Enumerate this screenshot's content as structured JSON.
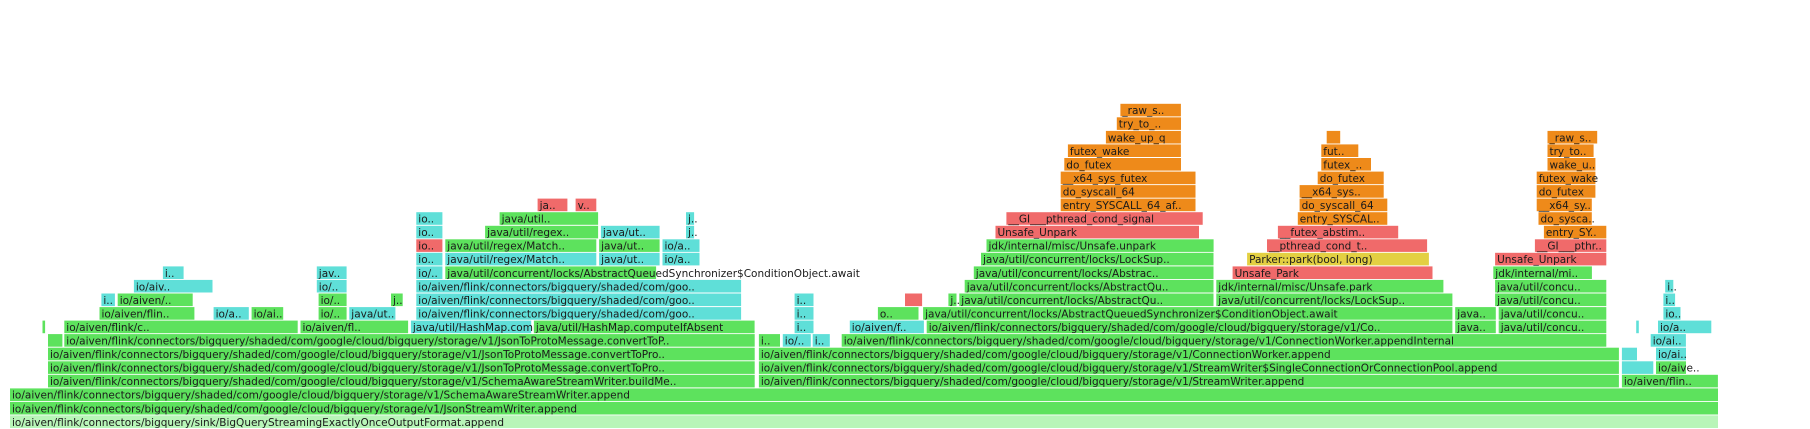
{
  "chart_data": {
    "type": "flame",
    "x_range": [
      0,
      1
    ],
    "frames": [
      {
        "d": 0,
        "x0": 0.0055,
        "x1": 0.9497,
        "c": "#b8f5b8",
        "label": "io/aiven/flink/connectors/bigquery/sink/BigQueryStreamingExactlyOnceOutputFormat.append"
      },
      {
        "d": 1,
        "x0": 0.0055,
        "x1": 0.9497,
        "c": "#5de25d",
        "label": "io/aiven/flink/connectors/bigquery/shaded/com/google/cloud/bigquery/storage/v1/JsonStreamWriter.append"
      },
      {
        "d": 2,
        "x0": 0.0055,
        "x1": 0.9497,
        "c": "#5de25d",
        "label": "io/aiven/flink/connectors/bigquery/shaded/com/google/cloud/bigquery/storage/v1/SchemaAwareStreamWriter.append"
      },
      {
        "d": 3,
        "x0": 0.0265,
        "x1": 0.4175,
        "c": "#5de25d",
        "label": "io/aiven/flink/connectors/bigquery/shaded/com/google/cloud/bigquery/storage/v1/SchemaAwareStreamWriter.buildMe.."
      },
      {
        "d": 3,
        "x0": 0.4193,
        "x1": 0.895,
        "c": "#5de25d",
        "label": "io/aiven/flink/connectors/bigquery/shaded/com/google/cloud/bigquery/storage/v1/StreamWriter.append"
      },
      {
        "d": 3,
        "x0": 0.8961,
        "x1": 0.9497,
        "c": "#5de25d",
        "label": "io/aiven/flin.."
      },
      {
        "d": 4,
        "x0": 0.0265,
        "x1": 0.4175,
        "c": "#5de25d",
        "label": "io/aiven/flink/connectors/bigquery/shaded/com/google/cloud/bigquery/storage/v1/JsonToProtoMessage.convertToPro.."
      },
      {
        "d": 4,
        "x0": 0.4193,
        "x1": 0.895,
        "c": "#5de25d",
        "label": "io/aiven/flink/connectors/bigquery/shaded/com/google/cloud/bigquery/storage/v1/StreamWriter$SingleConnectionOrConnectionPool.append"
      },
      {
        "d": 4,
        "x0": 0.8961,
        "x1": 0.914,
        "c": "#5fdfd8",
        "label": ""
      },
      {
        "d": 4,
        "x0": 0.9149,
        "x1": 0.932,
        "c": "#5de25d",
        "label": "io/aive.."
      },
      {
        "d": 5,
        "x0": 0.0265,
        "x1": 0.4175,
        "c": "#5de25d",
        "label": "io/aiven/flink/connectors/bigquery/shaded/com/google/cloud/bigquery/storage/v1/JsonToProtoMessage.convertToPro.."
      },
      {
        "d": 5,
        "x0": 0.4193,
        "x1": 0.895,
        "c": "#5de25d",
        "label": "io/aiven/flink/connectors/bigquery/shaded/com/google/cloud/bigquery/storage/v1/ConnectionWorker.append"
      },
      {
        "d": 5,
        "x0": 0.8961,
        "x1": 0.905,
        "c": "#5fdfd8",
        "label": ""
      },
      {
        "d": 5,
        "x0": 0.9149,
        "x1": 0.932,
        "c": "#5fdfd8",
        "label": "io/ai.."
      },
      {
        "d": 6,
        "x0": 0.0265,
        "x1": 0.035,
        "c": "#5de25d",
        "label": ""
      },
      {
        "d": 6,
        "x0": 0.0355,
        "x1": 0.4175,
        "c": "#5de25d",
        "label": "io/aiven/flink/connectors/bigquery/shaded/com/google/cloud/bigquery/storage/v1/JsonToProtoMessage.convertToP.."
      },
      {
        "d": 6,
        "x0": 0.4193,
        "x1": 0.4315,
        "c": "#5de25d",
        "label": "i.."
      },
      {
        "d": 6,
        "x0": 0.4325,
        "x1": 0.4485,
        "c": "#5fdfd8",
        "label": "io/.."
      },
      {
        "d": 6,
        "x0": 0.449,
        "x1": 0.459,
        "c": "#5fdfd8",
        "label": "i.."
      },
      {
        "d": 6,
        "x0": 0.465,
        "x1": 0.888,
        "c": "#5de25d",
        "label": "io/aiven/flink/connectors/bigquery/shaded/com/google/cloud/bigquery/storage/v1/ConnectionWorker.appendInternal"
      },
      {
        "d": 6,
        "x0": 0.912,
        "x1": 0.932,
        "c": "#5fdfd8",
        "label": "io/ai.."
      },
      {
        "d": 7,
        "x0": 0.0235,
        "x1": 0.0255,
        "c": "#5de25d",
        "label": ""
      },
      {
        "d": 7,
        "x0": 0.0355,
        "x1": 0.165,
        "c": "#5de25d",
        "label": "io/aiven/flink/c.."
      },
      {
        "d": 7,
        "x0": 0.166,
        "x1": 0.226,
        "c": "#5de25d",
        "label": "io/aiven/fl.."
      },
      {
        "d": 7,
        "x0": 0.227,
        "x1": 0.294,
        "c": "#5fdfd8",
        "label": "java/util/HashMap.computeIfAbsent"
      },
      {
        "d": 7,
        "x0": 0.295,
        "x1": 0.4175,
        "c": "#5de25d",
        "label": "java/util/HashMap.computeIfAbsent"
      },
      {
        "d": 7,
        "x0": 0.439,
        "x1": 0.45,
        "c": "#5fdfd8",
        "label": "i.."
      },
      {
        "d": 7,
        "x0": 0.4695,
        "x1": 0.511,
        "c": "#5fdfd8",
        "label": "io/aiven/f.."
      },
      {
        "d": 7,
        "x0": 0.512,
        "x1": 0.803,
        "c": "#5de25d",
        "label": "io/aiven/flink/connectors/bigquery/shaded/com/google/cloud/bigquery/storage/v1/Co.."
      },
      {
        "d": 7,
        "x0": 0.804,
        "x1": 0.827,
        "c": "#5de25d",
        "label": "java.."
      },
      {
        "d": 7,
        "x0": 0.828,
        "x1": 0.888,
        "c": "#5de25d",
        "label": "java/util/concu.."
      },
      {
        "d": 7,
        "x0": 0.904,
        "x1": 0.906,
        "c": "#5fdfd8",
        "label": ""
      },
      {
        "d": 7,
        "x0": 0.916,
        "x1": 0.946,
        "c": "#5fdfd8",
        "label": "io/a.."
      },
      {
        "d": 8,
        "x0": 0.055,
        "x1": 0.108,
        "c": "#5de25d",
        "label": "io/aiven/flin.."
      },
      {
        "d": 8,
        "x0": 0.118,
        "x1": 0.138,
        "c": "#5fdfd8",
        "label": "io/a.."
      },
      {
        "d": 8,
        "x0": 0.139,
        "x1": 0.157,
        "c": "#5de25d",
        "label": "io/ai.."
      },
      {
        "d": 8,
        "x0": 0.176,
        "x1": 0.192,
        "c": "#5de25d",
        "label": "io/.."
      },
      {
        "d": 8,
        "x0": 0.193,
        "x1": 0.219,
        "c": "#5fdfd8",
        "label": "java/ut.."
      },
      {
        "d": 8,
        "x0": 0.23,
        "x1": 0.41,
        "c": "#5fdfd8",
        "label": "io/aiven/flink/connectors/bigquery/shaded/com/goo.."
      },
      {
        "d": 8,
        "x0": 0.439,
        "x1": 0.45,
        "c": "#5fdfd8",
        "label": "i.."
      },
      {
        "d": 8,
        "x0": 0.485,
        "x1": 0.508,
        "c": "#5de25d",
        "label": "o.."
      },
      {
        "d": 8,
        "x0": 0.51,
        "x1": 0.803,
        "c": "#5de25d",
        "label": "java/util/concurrent/locks/AbstractQueuedSynchronizer$ConditionObject.await"
      },
      {
        "d": 8,
        "x0": 0.804,
        "x1": 0.827,
        "c": "#5de25d",
        "label": "java.."
      },
      {
        "d": 8,
        "x0": 0.828,
        "x1": 0.888,
        "c": "#5de25d",
        "label": "java/util/concu.."
      },
      {
        "d": 8,
        "x0": 0.919,
        "x1": 0.929,
        "c": "#5fdfd8",
        "label": "io.."
      },
      {
        "d": 9,
        "x0": 0.056,
        "x1": 0.064,
        "c": "#5fdfd8",
        "label": "i.."
      },
      {
        "d": 9,
        "x0": 0.065,
        "x1": 0.107,
        "c": "#5de25d",
        "label": "io/aiven/.."
      },
      {
        "d": 9,
        "x0": 0.176,
        "x1": 0.192,
        "c": "#5de25d",
        "label": "io/.."
      },
      {
        "d": 9,
        "x0": 0.216,
        "x1": 0.223,
        "c": "#5de25d",
        "label": "j.."
      },
      {
        "d": 9,
        "x0": 0.23,
        "x1": 0.41,
        "c": "#5fdfd8",
        "label": "io/aiven/flink/connectors/bigquery/shaded/com/goo.."
      },
      {
        "d": 9,
        "x0": 0.439,
        "x1": 0.45,
        "c": "#5fdfd8",
        "label": "i.."
      },
      {
        "d": 9,
        "x0": 0.5,
        "x1": 0.51,
        "c": "#f06a6a",
        "label": ""
      },
      {
        "d": 9,
        "x0": 0.524,
        "x1": 0.529,
        "c": "#5de25d",
        "label": "j.."
      },
      {
        "d": 9,
        "x0": 0.53,
        "x1": 0.671,
        "c": "#5de25d",
        "label": "java/util/concurrent/locks/AbstractQu.."
      },
      {
        "d": 9,
        "x0": 0.672,
        "x1": 0.803,
        "c": "#5de25d",
        "label": "java/util/concurrent/locks/LockSup.."
      },
      {
        "d": 9,
        "x0": 0.826,
        "x1": 0.888,
        "c": "#5de25d",
        "label": "java/util/concu.."
      },
      {
        "d": 9,
        "x0": 0.919,
        "x1": 0.926,
        "c": "#5fdfd8",
        "label": "i.."
      },
      {
        "d": 10,
        "x0": 0.074,
        "x1": 0.118,
        "c": "#5fdfd8",
        "label": "io/aiv.."
      },
      {
        "d": 10,
        "x0": 0.175,
        "x1": 0.192,
        "c": "#5fdfd8",
        "label": "io/.."
      },
      {
        "d": 10,
        "x0": 0.23,
        "x1": 0.41,
        "c": "#5fdfd8",
        "label": "io/aiven/flink/connectors/bigquery/shaded/com/goo.."
      },
      {
        "d": 10,
        "x0": 0.533,
        "x1": 0.671,
        "c": "#5de25d",
        "label": "java/util/concurrent/locks/AbstractQu.."
      },
      {
        "d": 10,
        "x0": 0.672,
        "x1": 0.798,
        "c": "#5de25d",
        "label": "jdk/internal/misc/Unsafe.park"
      },
      {
        "d": 10,
        "x0": 0.826,
        "x1": 0.888,
        "c": "#5de25d",
        "label": "java/util/concu.."
      },
      {
        "d": 10,
        "x0": 0.92,
        "x1": 0.925,
        "c": "#5fdfd8",
        "label": "i.."
      },
      {
        "d": 11,
        "x0": 0.09,
        "x1": 0.102,
        "c": "#5fdfd8",
        "label": "i.."
      },
      {
        "d": 11,
        "x0": 0.175,
        "x1": 0.192,
        "c": "#5fdfd8",
        "label": "jav.."
      },
      {
        "d": 11,
        "x0": 0.23,
        "x1": 0.245,
        "c": "#5fdfd8",
        "label": "io/.."
      },
      {
        "d": 11,
        "x0": 0.246,
        "x1": 0.363,
        "c": "#5de25d",
        "label": "java/util/concurrent/locks/AbstractQueuedSynchronizer$ConditionObject.await"
      },
      {
        "d": 11,
        "x0": 0.538,
        "x1": 0.671,
        "c": "#5de25d",
        "label": "java/util/concurrent/locks/Abstrac.."
      },
      {
        "d": 11,
        "x0": 0.681,
        "x1": 0.792,
        "c": "#f06a6a",
        "label": "Unsafe_Park"
      },
      {
        "d": 11,
        "x0": 0.825,
        "x1": 0.88,
        "c": "#5de25d",
        "label": "jdk/internal/mi.."
      },
      {
        "d": 12,
        "x0": 0.23,
        "x1": 0.245,
        "c": "#5fdfd8",
        "label": "io.."
      },
      {
        "d": 12,
        "x0": 0.246,
        "x1": 0.33,
        "c": "#5fdfd8",
        "label": "java/util/regex/Match.."
      },
      {
        "d": 12,
        "x0": 0.331,
        "x1": 0.365,
        "c": "#5fdfd8",
        "label": "java/ut.."
      },
      {
        "d": 12,
        "x0": 0.366,
        "x1": 0.387,
        "c": "#5fdfd8",
        "label": "io/a.."
      },
      {
        "d": 12,
        "x0": 0.542,
        "x1": 0.671,
        "c": "#5de25d",
        "label": "java/util/concurrent/locks/LockSup.."
      },
      {
        "d": 12,
        "x0": 0.689,
        "x1": 0.79,
        "c": "#e3d042",
        "label": "Parker::park(bool, long)"
      },
      {
        "d": 12,
        "x0": 0.826,
        "x1": 0.888,
        "c": "#f06a6a",
        "label": "Unsafe_Unpark"
      },
      {
        "d": 13,
        "x0": 0.23,
        "x1": 0.245,
        "c": "#f06a6a",
        "label": "io.."
      },
      {
        "d": 13,
        "x0": 0.246,
        "x1": 0.33,
        "c": "#5de25d",
        "label": "java/util/regex/Match.."
      },
      {
        "d": 13,
        "x0": 0.331,
        "x1": 0.365,
        "c": "#5de25d",
        "label": "java/ut.."
      },
      {
        "d": 13,
        "x0": 0.366,
        "x1": 0.387,
        "c": "#5fdfd8",
        "label": "io/a.."
      },
      {
        "d": 13,
        "x0": 0.545,
        "x1": 0.671,
        "c": "#5de25d",
        "label": "jdk/internal/misc/Unsafe.unpark"
      },
      {
        "d": 13,
        "x0": 0.7,
        "x1": 0.789,
        "c": "#f06a6a",
        "label": "__pthread_cond_t.."
      },
      {
        "d": 13,
        "x0": 0.848,
        "x1": 0.888,
        "c": "#f06a6a",
        "label": "__GI___pthr.."
      },
      {
        "d": 14,
        "x0": 0.23,
        "x1": 0.245,
        "c": "#5fdfd8",
        "label": "io.."
      },
      {
        "d": 14,
        "x0": 0.268,
        "x1": 0.331,
        "c": "#5de25d",
        "label": "java/util/regex.."
      },
      {
        "d": 14,
        "x0": 0.332,
        "x1": 0.365,
        "c": "#5fdfd8",
        "label": "java/ut.."
      },
      {
        "d": 14,
        "x0": 0.379,
        "x1": 0.384,
        "c": "#5fdfd8",
        "label": "j.."
      },
      {
        "d": 14,
        "x0": 0.55,
        "x1": 0.663,
        "c": "#f06a6a",
        "label": "Unsafe_Unpark"
      },
      {
        "d": 14,
        "x0": 0.706,
        "x1": 0.773,
        "c": "#f06a6a",
        "label": "__futex_abstim.."
      },
      {
        "d": 14,
        "x0": 0.853,
        "x1": 0.888,
        "c": "#ee8a1a",
        "label": "entry_SY.."
      },
      {
        "d": 15,
        "x0": 0.23,
        "x1": 0.245,
        "c": "#5fdfd8",
        "label": "io.."
      },
      {
        "d": 15,
        "x0": 0.276,
        "x1": 0.331,
        "c": "#5de25d",
        "label": "java/util.."
      },
      {
        "d": 15,
        "x0": 0.379,
        "x1": 0.384,
        "c": "#5fdfd8",
        "label": "j.."
      },
      {
        "d": 15,
        "x0": 0.556,
        "x1": 0.665,
        "c": "#f06a6a",
        "label": "__GI___pthread_cond_signal"
      },
      {
        "d": 15,
        "x0": 0.717,
        "x1": 0.767,
        "c": "#ee8a1a",
        "label": "entry_SYSCAL.."
      },
      {
        "d": 15,
        "x0": 0.85,
        "x1": 0.88,
        "c": "#ee8a1a",
        "label": "do_sysca.."
      },
      {
        "d": 16,
        "x0": 0.297,
        "x1": 0.314,
        "c": "#f06a6a",
        "label": "ja.."
      },
      {
        "d": 16,
        "x0": 0.318,
        "x1": 0.33,
        "c": "#f06a6a",
        "label": "v.."
      },
      {
        "d": 16,
        "x0": 0.586,
        "x1": 0.661,
        "c": "#ee8a1a",
        "label": "entry_SYSCALL_64_af.."
      },
      {
        "d": 16,
        "x0": 0.718,
        "x1": 0.767,
        "c": "#ee8a1a",
        "label": "do_syscall_64"
      },
      {
        "d": 16,
        "x0": 0.849,
        "x1": 0.88,
        "c": "#ee8a1a",
        "label": "__x64_sy.."
      },
      {
        "d": 17,
        "x0": 0.586,
        "x1": 0.661,
        "c": "#ee8a1a",
        "label": "do_syscall_64"
      },
      {
        "d": 17,
        "x0": 0.718,
        "x1": 0.765,
        "c": "#ee8a1a",
        "label": "__x64_sys.."
      },
      {
        "d": 17,
        "x0": 0.849,
        "x1": 0.882,
        "c": "#ee8a1a",
        "label": "do_futex"
      },
      {
        "d": 18,
        "x0": 0.586,
        "x1": 0.661,
        "c": "#ee8a1a",
        "label": "__x64_sys_futex"
      },
      {
        "d": 18,
        "x0": 0.728,
        "x1": 0.765,
        "c": "#ee8a1a",
        "label": "do_futex"
      },
      {
        "d": 18,
        "x0": 0.849,
        "x1": 0.882,
        "c": "#ee8a1a",
        "label": "futex_wake"
      },
      {
        "d": 19,
        "x0": 0.588,
        "x1": 0.653,
        "c": "#ee8a1a",
        "label": "do_futex"
      },
      {
        "d": 19,
        "x0": 0.73,
        "x1": 0.758,
        "c": "#ee8a1a",
        "label": "futex_.."
      },
      {
        "d": 19,
        "x0": 0.855,
        "x1": 0.882,
        "c": "#ee8a1a",
        "label": "wake_u.."
      },
      {
        "d": 20,
        "x0": 0.59,
        "x1": 0.653,
        "c": "#ee8a1a",
        "label": "futex_wake"
      },
      {
        "d": 20,
        "x0": 0.73,
        "x1": 0.751,
        "c": "#ee8a1a",
        "label": "fut.."
      },
      {
        "d": 20,
        "x0": 0.855,
        "x1": 0.881,
        "c": "#ee8a1a",
        "label": "try_to.."
      },
      {
        "d": 21,
        "x0": 0.611,
        "x1": 0.653,
        "c": "#ee8a1a",
        "label": "wake_up_q"
      },
      {
        "d": 21,
        "x0": 0.733,
        "x1": 0.741,
        "c": "#ee8a1a",
        "label": ""
      },
      {
        "d": 21,
        "x0": 0.855,
        "x1": 0.883,
        "c": "#ee8a1a",
        "label": "_raw_s.."
      },
      {
        "d": 22,
        "x0": 0.617,
        "x1": 0.653,
        "c": "#ee8a1a",
        "label": "try_to_.."
      },
      {
        "d": 23,
        "x0": 0.619,
        "x1": 0.653,
        "c": "#ee8a1a",
        "label": "_raw_s.."
      }
    ]
  }
}
